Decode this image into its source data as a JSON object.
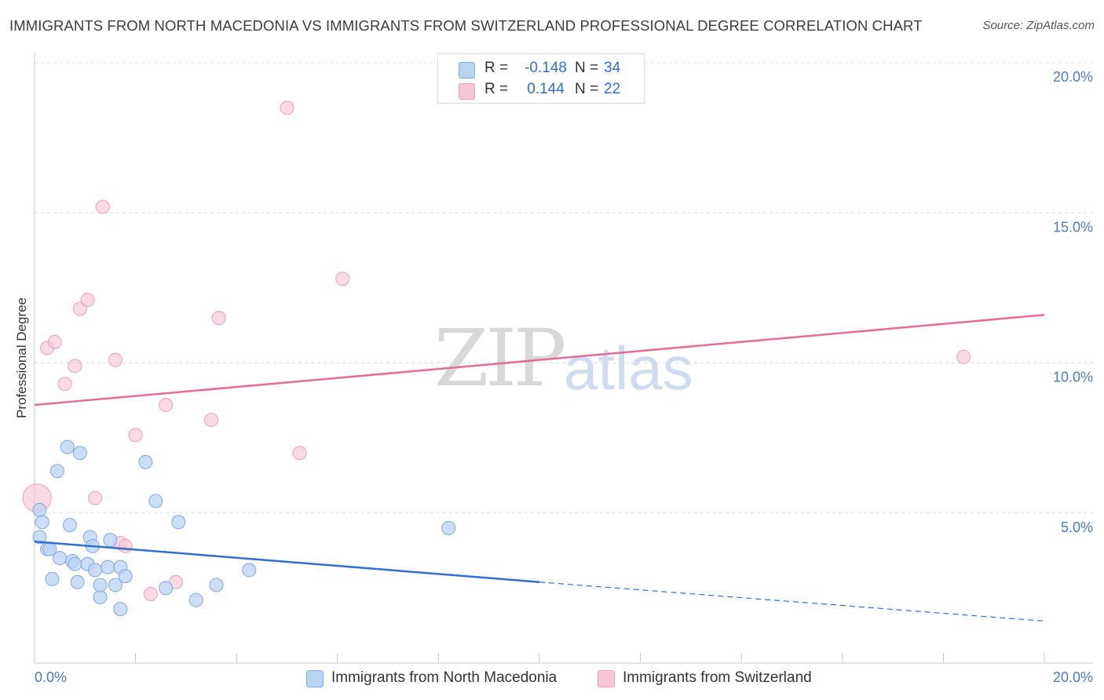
{
  "header": {
    "title": "IMMIGRANTS FROM NORTH MACEDONIA VS IMMIGRANTS FROM SWITZERLAND PROFESSIONAL DEGREE CORRELATION CHART",
    "source": "Source: ZipAtlas.com"
  },
  "watermark": {
    "zip": "ZIP",
    "atlas": "atlas"
  },
  "legend": {
    "r_label": "R =",
    "n_label": "N =",
    "series": [
      {
        "r": "-0.148",
        "n": "34"
      },
      {
        "r": "0.144",
        "n": "22"
      }
    ]
  },
  "colors": {
    "blue_fill": "#b9d3f3",
    "blue_stroke": "#7fa9e3",
    "blue_line": "#2f6fcf",
    "pink_fill": "#f8c6d6",
    "pink_stroke": "#eea2ba",
    "pink_line": "#e46d96",
    "grid": "#dedede",
    "axis": "#c8c8c8"
  },
  "chart_data": {
    "type": "scatter",
    "title": "IMMIGRANTS FROM NORTH MACEDONIA VS IMMIGRANTS FROM SWITZERLAND PROFESSIONAL DEGREE CORRELATION CHART",
    "xlabel": "",
    "ylabel": "Professional Degree",
    "xlim": [
      0,
      20
    ],
    "ylim": [
      0,
      20
    ],
    "x_tick_labels": [
      "0.0%",
      "20.0%"
    ],
    "y_ticks": [
      5,
      10,
      15,
      20
    ],
    "y_tick_labels": [
      "5.0%",
      "10.0%",
      "15.0%",
      "20.0%"
    ],
    "grid": true,
    "legend_position": "bottom",
    "series": [
      {
        "name": "Immigrants from North Macedonia",
        "color": "blue",
        "r": -0.148,
        "n": 34,
        "trend": {
          "x0": 0,
          "y0": 4.05,
          "x_solid_end": 10.0,
          "y_solid_end": 2.7,
          "x1": 20,
          "y1": 1.4
        },
        "points": [
          [
            0.1,
            5.1
          ],
          [
            0.15,
            4.7
          ],
          [
            0.1,
            4.2
          ],
          [
            0.25,
            3.8
          ],
          [
            0.3,
            3.8
          ],
          [
            0.35,
            2.8
          ],
          [
            0.45,
            6.4
          ],
          [
            0.5,
            3.5
          ],
          [
            0.65,
            7.2
          ],
          [
            0.7,
            4.6
          ],
          [
            0.75,
            3.4
          ],
          [
            0.8,
            3.3
          ],
          [
            0.85,
            2.7
          ],
          [
            0.9,
            7.0
          ],
          [
            1.05,
            3.3
          ],
          [
            1.1,
            4.2
          ],
          [
            1.15,
            3.9
          ],
          [
            1.2,
            3.1
          ],
          [
            1.3,
            2.2
          ],
          [
            1.3,
            2.6
          ],
          [
            1.45,
            3.2
          ],
          [
            1.5,
            4.1
          ],
          [
            1.6,
            2.6
          ],
          [
            1.7,
            3.2
          ],
          [
            1.7,
            1.8
          ],
          [
            1.8,
            2.9
          ],
          [
            2.2,
            6.7
          ],
          [
            2.4,
            5.4
          ],
          [
            2.85,
            4.7
          ],
          [
            3.2,
            2.1
          ],
          [
            3.6,
            2.6
          ],
          [
            4.25,
            3.1
          ],
          [
            8.2,
            4.5
          ],
          [
            2.6,
            2.5
          ]
        ]
      },
      {
        "name": "Immigrants from Switzerland",
        "color": "pink",
        "r": 0.144,
        "n": 22,
        "trend": {
          "x0": 0,
          "y0": 8.6,
          "x1": 20,
          "y1": 11.6
        },
        "points": [
          [
            0.05,
            5.5
          ],
          [
            0.25,
            10.5
          ],
          [
            0.4,
            10.7
          ],
          [
            0.6,
            9.3
          ],
          [
            0.8,
            9.9
          ],
          [
            0.9,
            11.8
          ],
          [
            1.05,
            12.1
          ],
          [
            1.2,
            5.5
          ],
          [
            1.35,
            15.2
          ],
          [
            1.6,
            10.1
          ],
          [
            1.7,
            4.0
          ],
          [
            1.8,
            3.9
          ],
          [
            2.0,
            7.6
          ],
          [
            2.3,
            2.3
          ],
          [
            2.6,
            8.6
          ],
          [
            2.8,
            2.7
          ],
          [
            3.5,
            8.1
          ],
          [
            3.65,
            11.5
          ],
          [
            5.0,
            18.5
          ],
          [
            5.25,
            7.0
          ],
          [
            6.1,
            12.8
          ],
          [
            18.4,
            10.2
          ]
        ]
      }
    ]
  }
}
